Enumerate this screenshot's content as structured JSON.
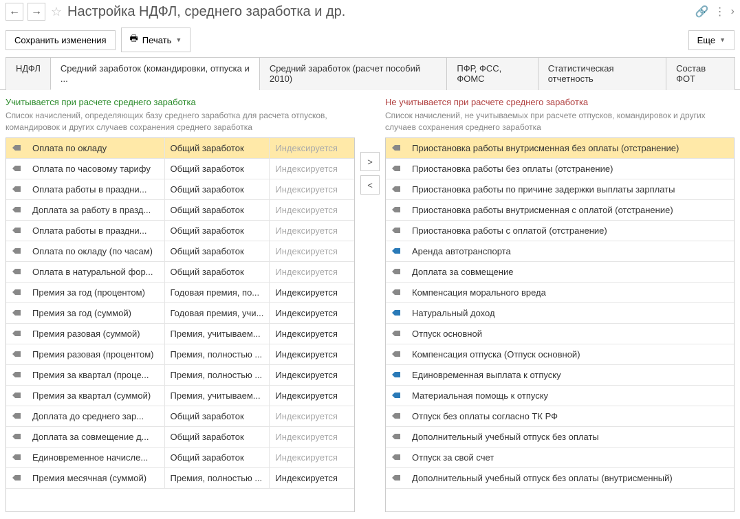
{
  "header": {
    "title": "Настройка НДФЛ, среднего заработка и др."
  },
  "toolbar": {
    "save_label": "Сохранить изменения",
    "print_label": "Печать",
    "more_label": "Еще"
  },
  "tabs": [
    {
      "label": "НДФЛ",
      "active": false
    },
    {
      "label": "Средний заработок (командировки, отпуска и ...",
      "active": true
    },
    {
      "label": "Средний заработок (расчет пособий 2010)",
      "active": false
    },
    {
      "label": "ПФР, ФСС, ФОМС",
      "active": false
    },
    {
      "label": "Статистическая отчетность",
      "active": false
    },
    {
      "label": "Состав ФОТ",
      "active": false
    }
  ],
  "left_panel": {
    "title": "Учитывается при расчете среднего заработка",
    "desc": "Список начислений, определяющих базу среднего заработка для расчета отпусков, командировок и других случаев сохранения среднего заработка",
    "rows": [
      {
        "name": "Оплата по окладу",
        "type": "Общий заработок",
        "index": "Индексируется",
        "index_dark": false,
        "selected": true,
        "icon": "gray"
      },
      {
        "name": "Оплата по часовому тарифу",
        "type": "Общий заработок",
        "index": "Индексируется",
        "index_dark": false,
        "selected": false,
        "icon": "gray"
      },
      {
        "name": "Оплата работы в праздни...",
        "type": "Общий заработок",
        "index": "Индексируется",
        "index_dark": false,
        "selected": false,
        "icon": "gray"
      },
      {
        "name": "Доплата за работу в празд...",
        "type": "Общий заработок",
        "index": "Индексируется",
        "index_dark": false,
        "selected": false,
        "icon": "gray"
      },
      {
        "name": "Оплата работы в праздни...",
        "type": "Общий заработок",
        "index": "Индексируется",
        "index_dark": false,
        "selected": false,
        "icon": "gray"
      },
      {
        "name": "Оплата по окладу (по часам)",
        "type": "Общий заработок",
        "index": "Индексируется",
        "index_dark": false,
        "selected": false,
        "icon": "gray"
      },
      {
        "name": "Оплата в натуральной фор...",
        "type": "Общий заработок",
        "index": "Индексируется",
        "index_dark": false,
        "selected": false,
        "icon": "gray"
      },
      {
        "name": "Премия за год (процентом)",
        "type": "Годовая премия, по...",
        "index": "Индексируется",
        "index_dark": true,
        "selected": false,
        "icon": "gray"
      },
      {
        "name": "Премия за год (суммой)",
        "type": "Годовая премия, учи...",
        "index": "Индексируется",
        "index_dark": true,
        "selected": false,
        "icon": "gray"
      },
      {
        "name": "Премия разовая (суммой)",
        "type": "Премия, учитываем...",
        "index": "Индексируется",
        "index_dark": true,
        "selected": false,
        "icon": "gray"
      },
      {
        "name": "Премия разовая (процентом)",
        "type": "Премия, полностью ...",
        "index": "Индексируется",
        "index_dark": true,
        "selected": false,
        "icon": "gray"
      },
      {
        "name": "Премия за квартал (проце...",
        "type": "Премия, полностью ...",
        "index": "Индексируется",
        "index_dark": true,
        "selected": false,
        "icon": "gray"
      },
      {
        "name": "Премия за квартал (суммой)",
        "type": "Премия, учитываем...",
        "index": "Индексируется",
        "index_dark": true,
        "selected": false,
        "icon": "gray"
      },
      {
        "name": "Доплата до среднего зар...",
        "type": "Общий заработок",
        "index": "Индексируется",
        "index_dark": false,
        "selected": false,
        "icon": "gray"
      },
      {
        "name": "Доплата за совмещение д...",
        "type": "Общий заработок",
        "index": "Индексируется",
        "index_dark": false,
        "selected": false,
        "icon": "gray"
      },
      {
        "name": "Единовременное начисле...",
        "type": "Общий заработок",
        "index": "Индексируется",
        "index_dark": false,
        "selected": false,
        "icon": "gray"
      },
      {
        "name": "Премия месячная (суммой)",
        "type": "Премия, полностью ...",
        "index": "Индексируется",
        "index_dark": true,
        "selected": false,
        "icon": "gray"
      }
    ]
  },
  "right_panel": {
    "title": "Не учитывается при расчете среднего заработка",
    "desc": "Список начислений, не учитываемых при расчете отпусков, командировок и других случаев сохранения среднего заработка",
    "rows": [
      {
        "name": "Приостановка работы внутрисменная без оплаты (отстранение)",
        "selected": true,
        "icon": "gray"
      },
      {
        "name": "Приостановка работы без оплаты (отстранение)",
        "selected": false,
        "icon": "gray"
      },
      {
        "name": "Приостановка работы по причине задержки выплаты зарплаты",
        "selected": false,
        "icon": "gray"
      },
      {
        "name": "Приостановка работы внутрисменная с оплатой (отстранение)",
        "selected": false,
        "icon": "gray"
      },
      {
        "name": "Приостановка работы с оплатой (отстранение)",
        "selected": false,
        "icon": "gray"
      },
      {
        "name": "Аренда автотранспорта",
        "selected": false,
        "icon": "blue"
      },
      {
        "name": "Доплата за совмещение",
        "selected": false,
        "icon": "gray"
      },
      {
        "name": "Компенсация морального вреда",
        "selected": false,
        "icon": "gray"
      },
      {
        "name": "Натуральный доход",
        "selected": false,
        "icon": "blue"
      },
      {
        "name": "Отпуск основной",
        "selected": false,
        "icon": "gray"
      },
      {
        "name": "Компенсация отпуска (Отпуск основной)",
        "selected": false,
        "icon": "gray"
      },
      {
        "name": "Единовременная выплата к отпуску",
        "selected": false,
        "icon": "blue"
      },
      {
        "name": "Материальная помощь к отпуску",
        "selected": false,
        "icon": "blue"
      },
      {
        "name": "Отпуск без оплаты согласно ТК РФ",
        "selected": false,
        "icon": "gray"
      },
      {
        "name": "Дополнительный учебный отпуск без оплаты",
        "selected": false,
        "icon": "gray"
      },
      {
        "name": "Отпуск за свой счет",
        "selected": false,
        "icon": "gray"
      },
      {
        "name": "Дополнительный учебный отпуск без оплаты (внутрисменный)",
        "selected": false,
        "icon": "gray"
      }
    ]
  }
}
